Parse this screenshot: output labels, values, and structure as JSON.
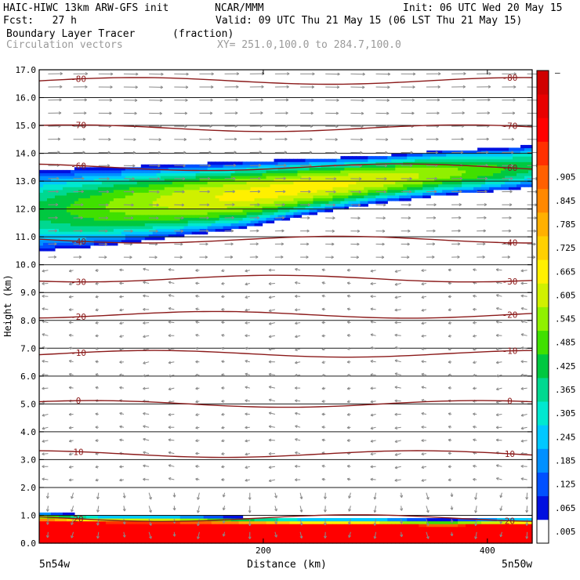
{
  "header": {
    "model_title": "HAIC-HIWC 13km ARW-GFS init",
    "org": "NCAR/MMM",
    "init": "Init: 06 UTC Wed 20 May 15",
    "fcst": "Fcst:   27 h",
    "valid": "Valid: 09 UTC Thu 21 May 15 (06 LST Thu 21 May 15)",
    "field_name": "Boundary Layer Tracer",
    "field_unit": "(fraction)",
    "vector_name": "Circulation vectors",
    "xy_range": "XY= 251.0,100.0 to 284.7,100.0"
  },
  "chart_data": {
    "type": "heatmap",
    "xlabel": "Distance (km)",
    "ylabel": "Height (km)",
    "xlim": [
      0,
      440
    ],
    "ylim": [
      0,
      17
    ],
    "x_ticks": [
      "200",
      "400"
    ],
    "x_tick_values": [
      200,
      400
    ],
    "x_left_label": "5n54w",
    "x_right_label": "5n50w",
    "y_ticks": [
      "0.0",
      "1.0",
      "2.0",
      "3.0",
      "4.0",
      "5.0",
      "6.0",
      "7.0",
      "8.0",
      "9.0",
      "10.0",
      "11.0",
      "12.0",
      "13.0",
      "14.0",
      "15.0",
      "16.0",
      "17.0"
    ],
    "colorbar": {
      "labels": [
        ".905",
        ".845",
        ".785",
        ".725",
        ".665",
        ".605",
        ".545",
        ".485",
        ".425",
        ".365",
        ".305",
        ".245",
        ".185",
        ".125",
        ".065",
        ".005"
      ],
      "label_values": [
        0.905,
        0.845,
        0.785,
        0.725,
        0.665,
        0.605,
        0.545,
        0.485,
        0.425,
        0.365,
        0.305,
        0.245,
        0.185,
        0.125,
        0.065,
        0.005
      ],
      "top_mark": "–",
      "colors": [
        "#ffffff",
        "#0010e0",
        "#0050ff",
        "#0090ff",
        "#00c8ff",
        "#00e8d0",
        "#00d890",
        "#00c840",
        "#40e000",
        "#90f000",
        "#d0f000",
        "#fff000",
        "#ffd000",
        "#ffb000",
        "#ff8800",
        "#ff6000",
        "#ff3000",
        "#ff0000",
        "#e80000",
        "#d00000"
      ]
    },
    "temperature_contours": [
      {
        "label": "-80",
        "height": 16.6
      },
      {
        "label": "-70",
        "height": 14.9
      },
      {
        "label": "-60",
        "height": 13.5
      },
      {
        "label": "-40",
        "height": 10.9
      },
      {
        "label": "-30",
        "height": 9.5
      },
      {
        "label": "-20",
        "height": 8.2
      },
      {
        "label": "-10",
        "height": 6.8
      },
      {
        "label": "0",
        "height": 5.0
      },
      {
        "label": "10",
        "height": 3.2
      },
      {
        "label": "20",
        "height": 0.9
      }
    ],
    "tracer_layers": [
      {
        "name": "upper",
        "x": [
          0,
          60,
          120,
          180,
          240,
          300,
          360,
          420,
          440
        ],
        "bottom": [
          10.5,
          10.7,
          11.0,
          11.3,
          11.8,
          12.2,
          12.5,
          12.7,
          12.8
        ],
        "top": [
          13.4,
          13.5,
          13.6,
          13.7,
          13.8,
          13.9,
          14.1,
          14.2,
          14.3
        ],
        "max": 0.62
      },
      {
        "name": "boundary",
        "x": [
          0,
          60,
          120,
          180,
          240,
          300,
          360,
          420,
          440
        ],
        "bottom": [
          0,
          0,
          0,
          0,
          0,
          0,
          0,
          0,
          0
        ],
        "top": [
          1.1,
          1.0,
          1.0,
          0.95,
          0.9,
          0.9,
          0.85,
          0.9,
          0.9
        ],
        "max": 1.0
      }
    ]
  }
}
